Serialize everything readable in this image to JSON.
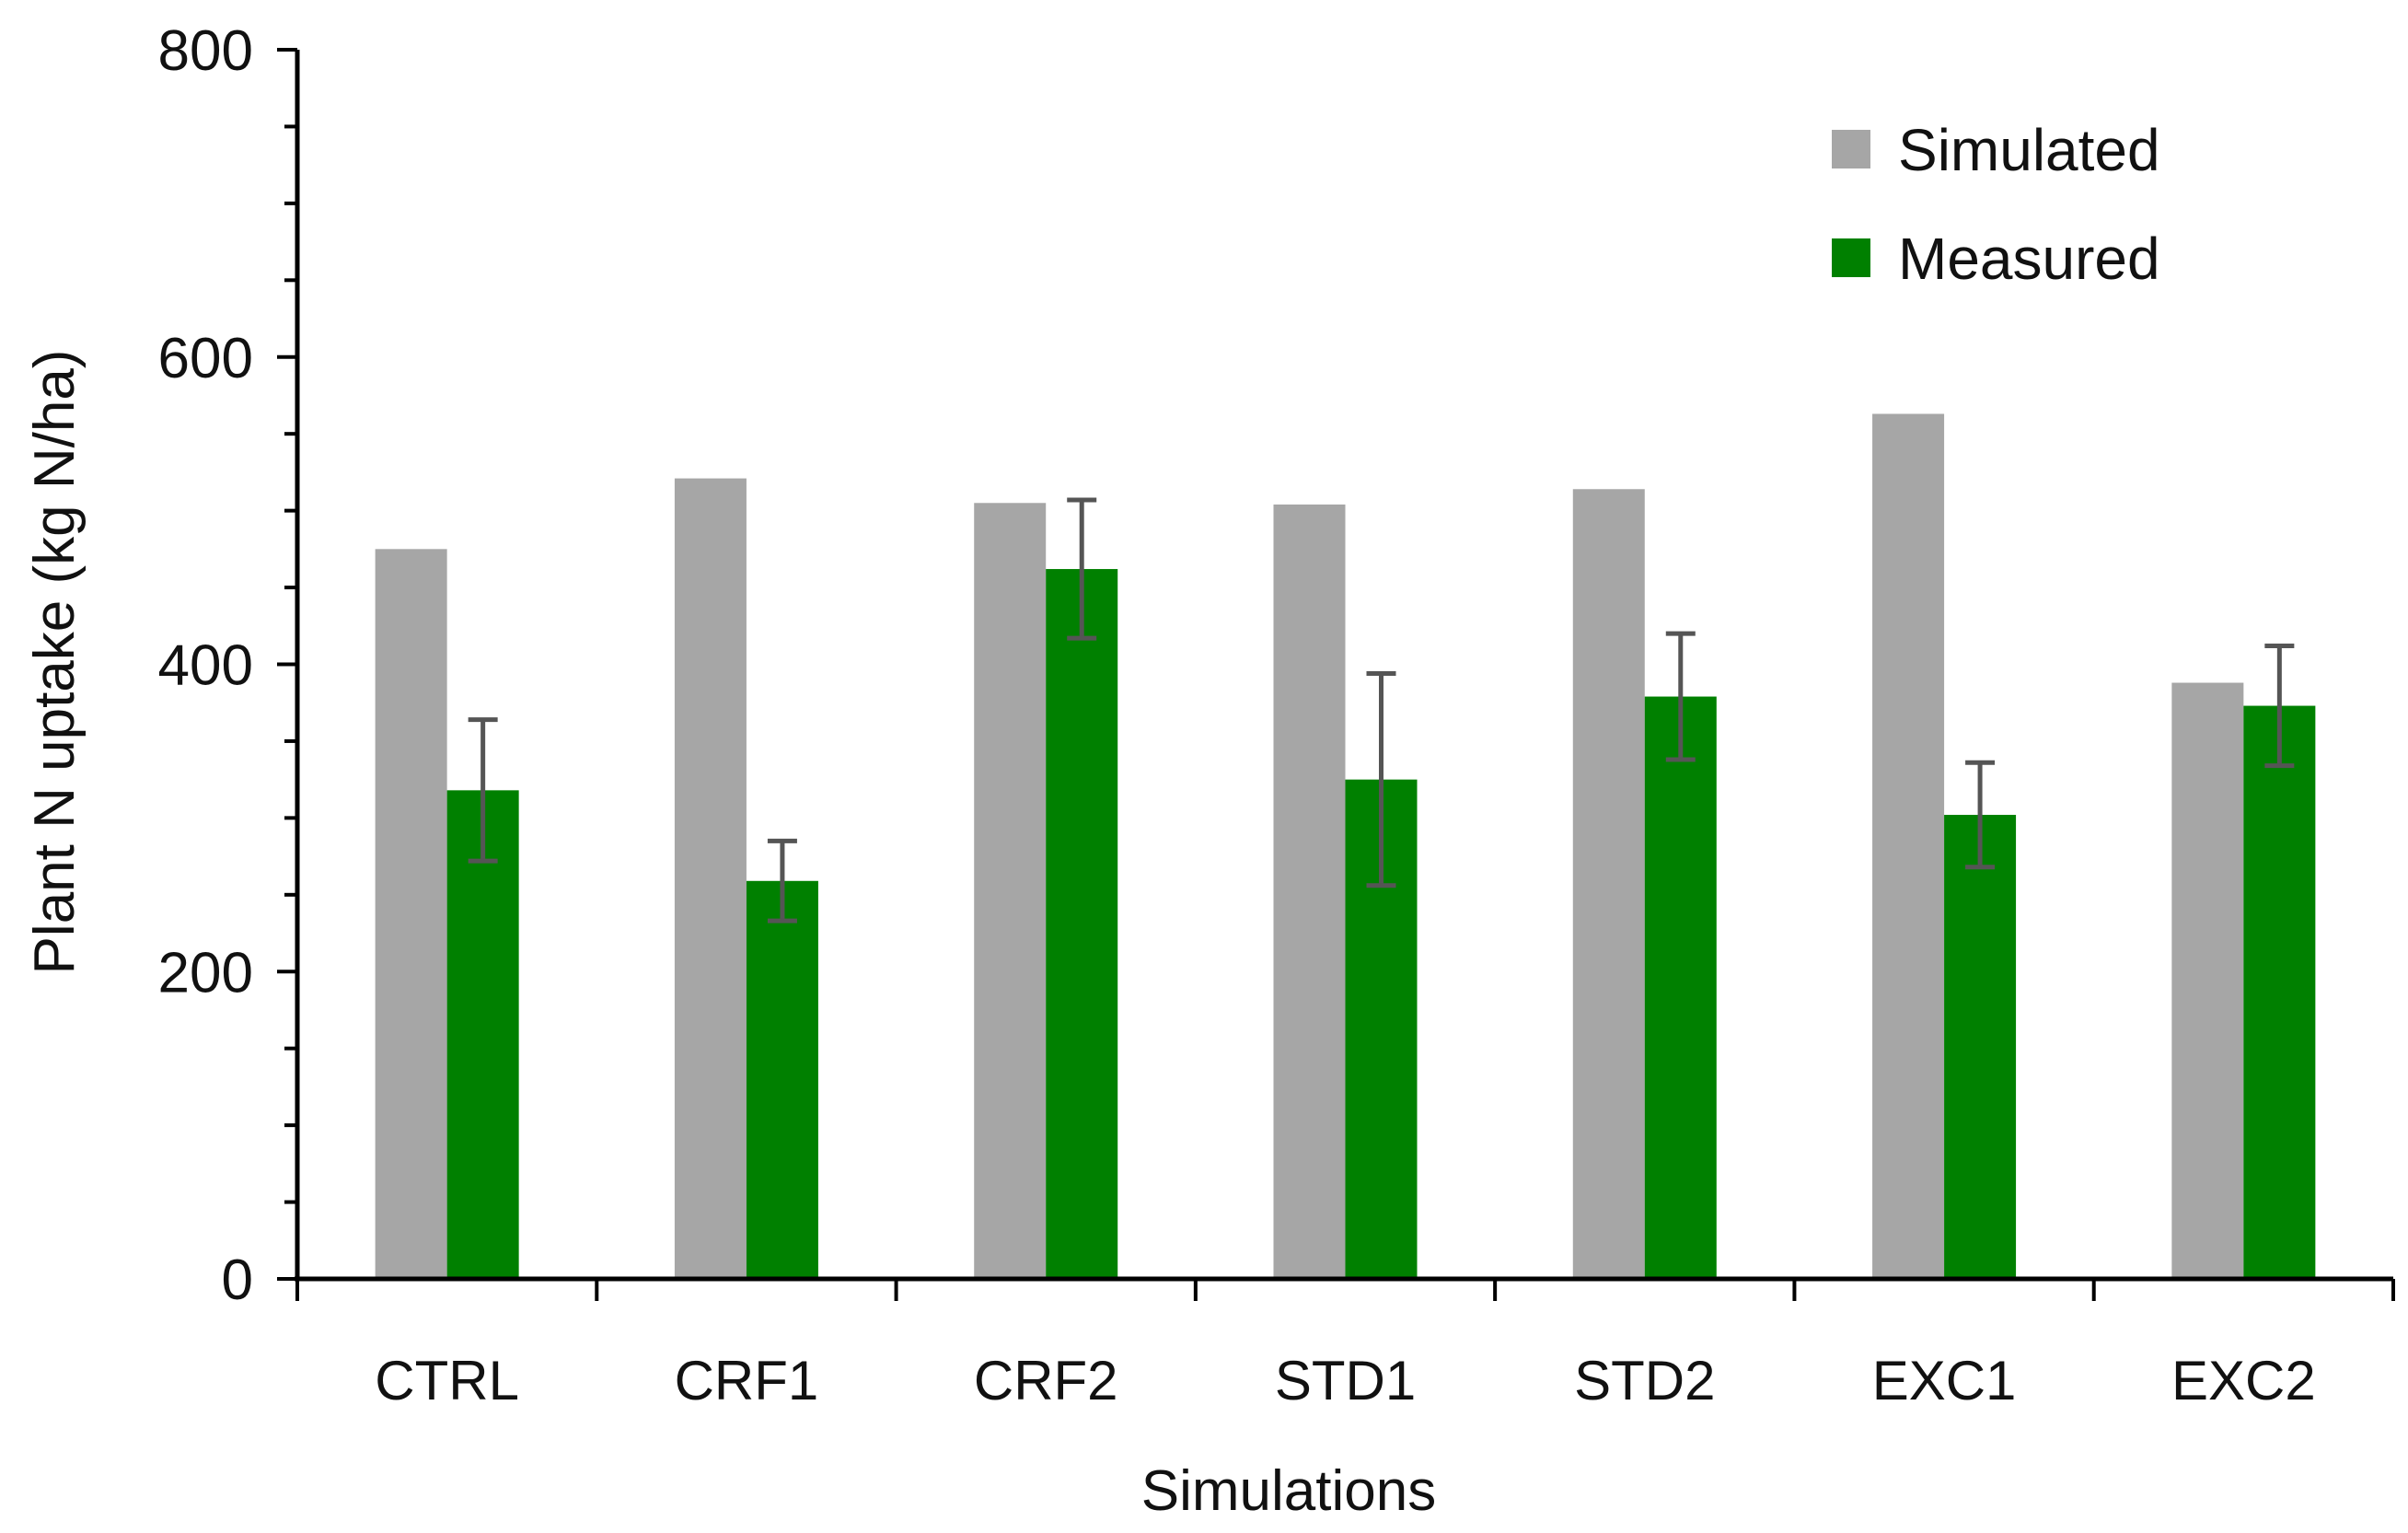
{
  "chart_data": {
    "type": "bar",
    "title": "",
    "xlabel": "Simulations",
    "ylabel": "Plant N uptake (kg N/ha)",
    "ylim": [
      0,
      800
    ],
    "yticks": [
      0,
      200,
      400,
      600,
      800
    ],
    "minor_tick_step": 50,
    "grid": false,
    "legend_position": "top-right",
    "categories": [
      "CTRL",
      "CRF1",
      "CRF2",
      "STD1",
      "STD2",
      "EXC1",
      "EXC2"
    ],
    "series": [
      {
        "name": "Simulated",
        "color": "#a6a6a6",
        "values": [
          475,
          521,
          505,
          504,
          514,
          563,
          388
        ]
      },
      {
        "name": "Measured",
        "color": "#008000",
        "values": [
          318,
          259,
          462,
          325,
          379,
          302,
          373
        ],
        "error": [
          46,
          26,
          45,
          69,
          41,
          34,
          39
        ],
        "error_color": "#555555"
      }
    ]
  }
}
